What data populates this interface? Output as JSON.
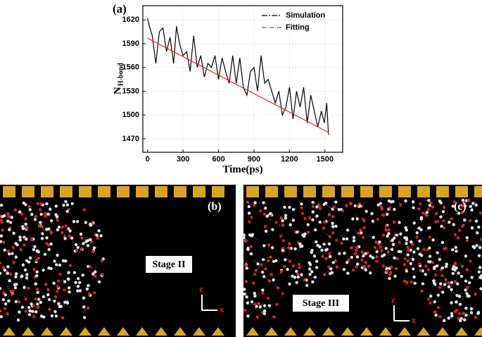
{
  "chart_data": {
    "type": "line",
    "panel_label": "(a)",
    "xlabel": "Time(ps)",
    "ylabel": "N",
    "ylabel_sub": "H-bond",
    "xlim": [
      -40,
      1650
    ],
    "ylim": [
      1453,
      1638
    ],
    "xticks": [
      0,
      300,
      600,
      900,
      1200,
      1500
    ],
    "yticks": [
      1470,
      1500,
      1530,
      1560,
      1590,
      1620
    ],
    "legend": "upper right",
    "grid": true,
    "series": [
      {
        "name": "Simulation",
        "color": "#000000",
        "dash": "8 2 2 2",
        "x": [
          0,
          15,
          40,
          70,
          100,
          130,
          160,
          190,
          220,
          245,
          270,
          300,
          330,
          360,
          390,
          420,
          450,
          480,
          510,
          540,
          570,
          600,
          630,
          660,
          690,
          720,
          750,
          780,
          810,
          840,
          870,
          900,
          930,
          960,
          990,
          1020,
          1050,
          1080,
          1110,
          1140,
          1170,
          1200,
          1230,
          1260,
          1290,
          1320,
          1350,
          1380,
          1410,
          1440,
          1470,
          1495,
          1515,
          1530
        ],
        "values": [
          1622,
          1612,
          1600,
          1565,
          1605,
          1610,
          1580,
          1598,
          1565,
          1612,
          1590,
          1575,
          1580,
          1555,
          1600,
          1560,
          1575,
          1548,
          1565,
          1560,
          1575,
          1545,
          1572,
          1555,
          1540,
          1575,
          1540,
          1572,
          1535,
          1525,
          1555,
          1560,
          1530,
          1575,
          1540,
          1545,
          1530,
          1515,
          1530,
          1500,
          1510,
          1535,
          1495,
          1530,
          1510,
          1535,
          1490,
          1525,
          1505,
          1485,
          1505,
          1490,
          1515,
          1475
        ]
      },
      {
        "name": "Fitting",
        "color": "#e8281e",
        "dash": "6 2 1 2",
        "x": [
          0,
          1530
        ],
        "values": [
          1597,
          1478
        ]
      }
    ]
  },
  "panels": [
    {
      "label": "(b)",
      "stage": "Stage II",
      "axis_z": "z",
      "axis_x": "x"
    },
    {
      "label": "(c)",
      "stage": "Stage III",
      "axis_z": "z",
      "axis_x": "x"
    }
  ]
}
